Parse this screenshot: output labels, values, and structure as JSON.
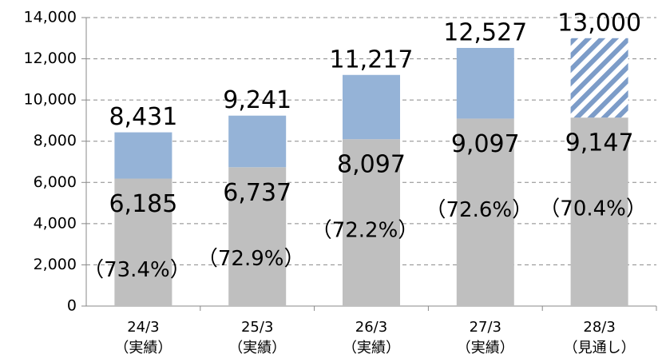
{
  "chart_data": {
    "type": "stacked_bar",
    "categories": [
      "24/3",
      "25/3",
      "26/3",
      "27/3",
      "28/3"
    ],
    "sublabels": [
      "（実績）",
      "（実績）",
      "（実績）",
      "（実績）",
      "（見通し）"
    ],
    "series": [
      {
        "color": "#bfbfbf",
        "values": [
          6185,
          6737,
          8097,
          9097,
          9147
        ],
        "value_labels": [
          "6,185",
          "6,737",
          "8,097",
          "9,097",
          "9,147"
        ]
      },
      {
        "color": "#95b3d7",
        "values": [
          2246,
          2504,
          3120,
          3430,
          3853
        ],
        "hatch": [
          false,
          false,
          false,
          false,
          true
        ]
      }
    ],
    "totals": [
      8431,
      9241,
      11217,
      12527,
      13000
    ],
    "total_labels": [
      "8,431",
      "9,241",
      "11,217",
      "12,527",
      "13,000"
    ],
    "shares": [
      73.4,
      72.9,
      72.2,
      72.6,
      70.4
    ],
    "share_labels": [
      "（73.4%）",
      "（72.9%）",
      "（72.2%）",
      "（72.6%）",
      "（70.4%）"
    ],
    "ylim": [
      0,
      14000
    ],
    "yticks": [
      0,
      {
        "value": 2000,
        "label": "2,000"
      },
      {
        "value": 4000,
        "label": "4,000"
      },
      {
        "value": 6000,
        "label": "6,000"
      },
      {
        "value": 8000,
        "label": "8,000"
      },
      {
        "value": 10000,
        "label": "10,000"
      },
      {
        "value": 12000,
        "label": "12,000"
      },
      {
        "value": 14000,
        "label": "14,000"
      }
    ],
    "grid": true
  }
}
